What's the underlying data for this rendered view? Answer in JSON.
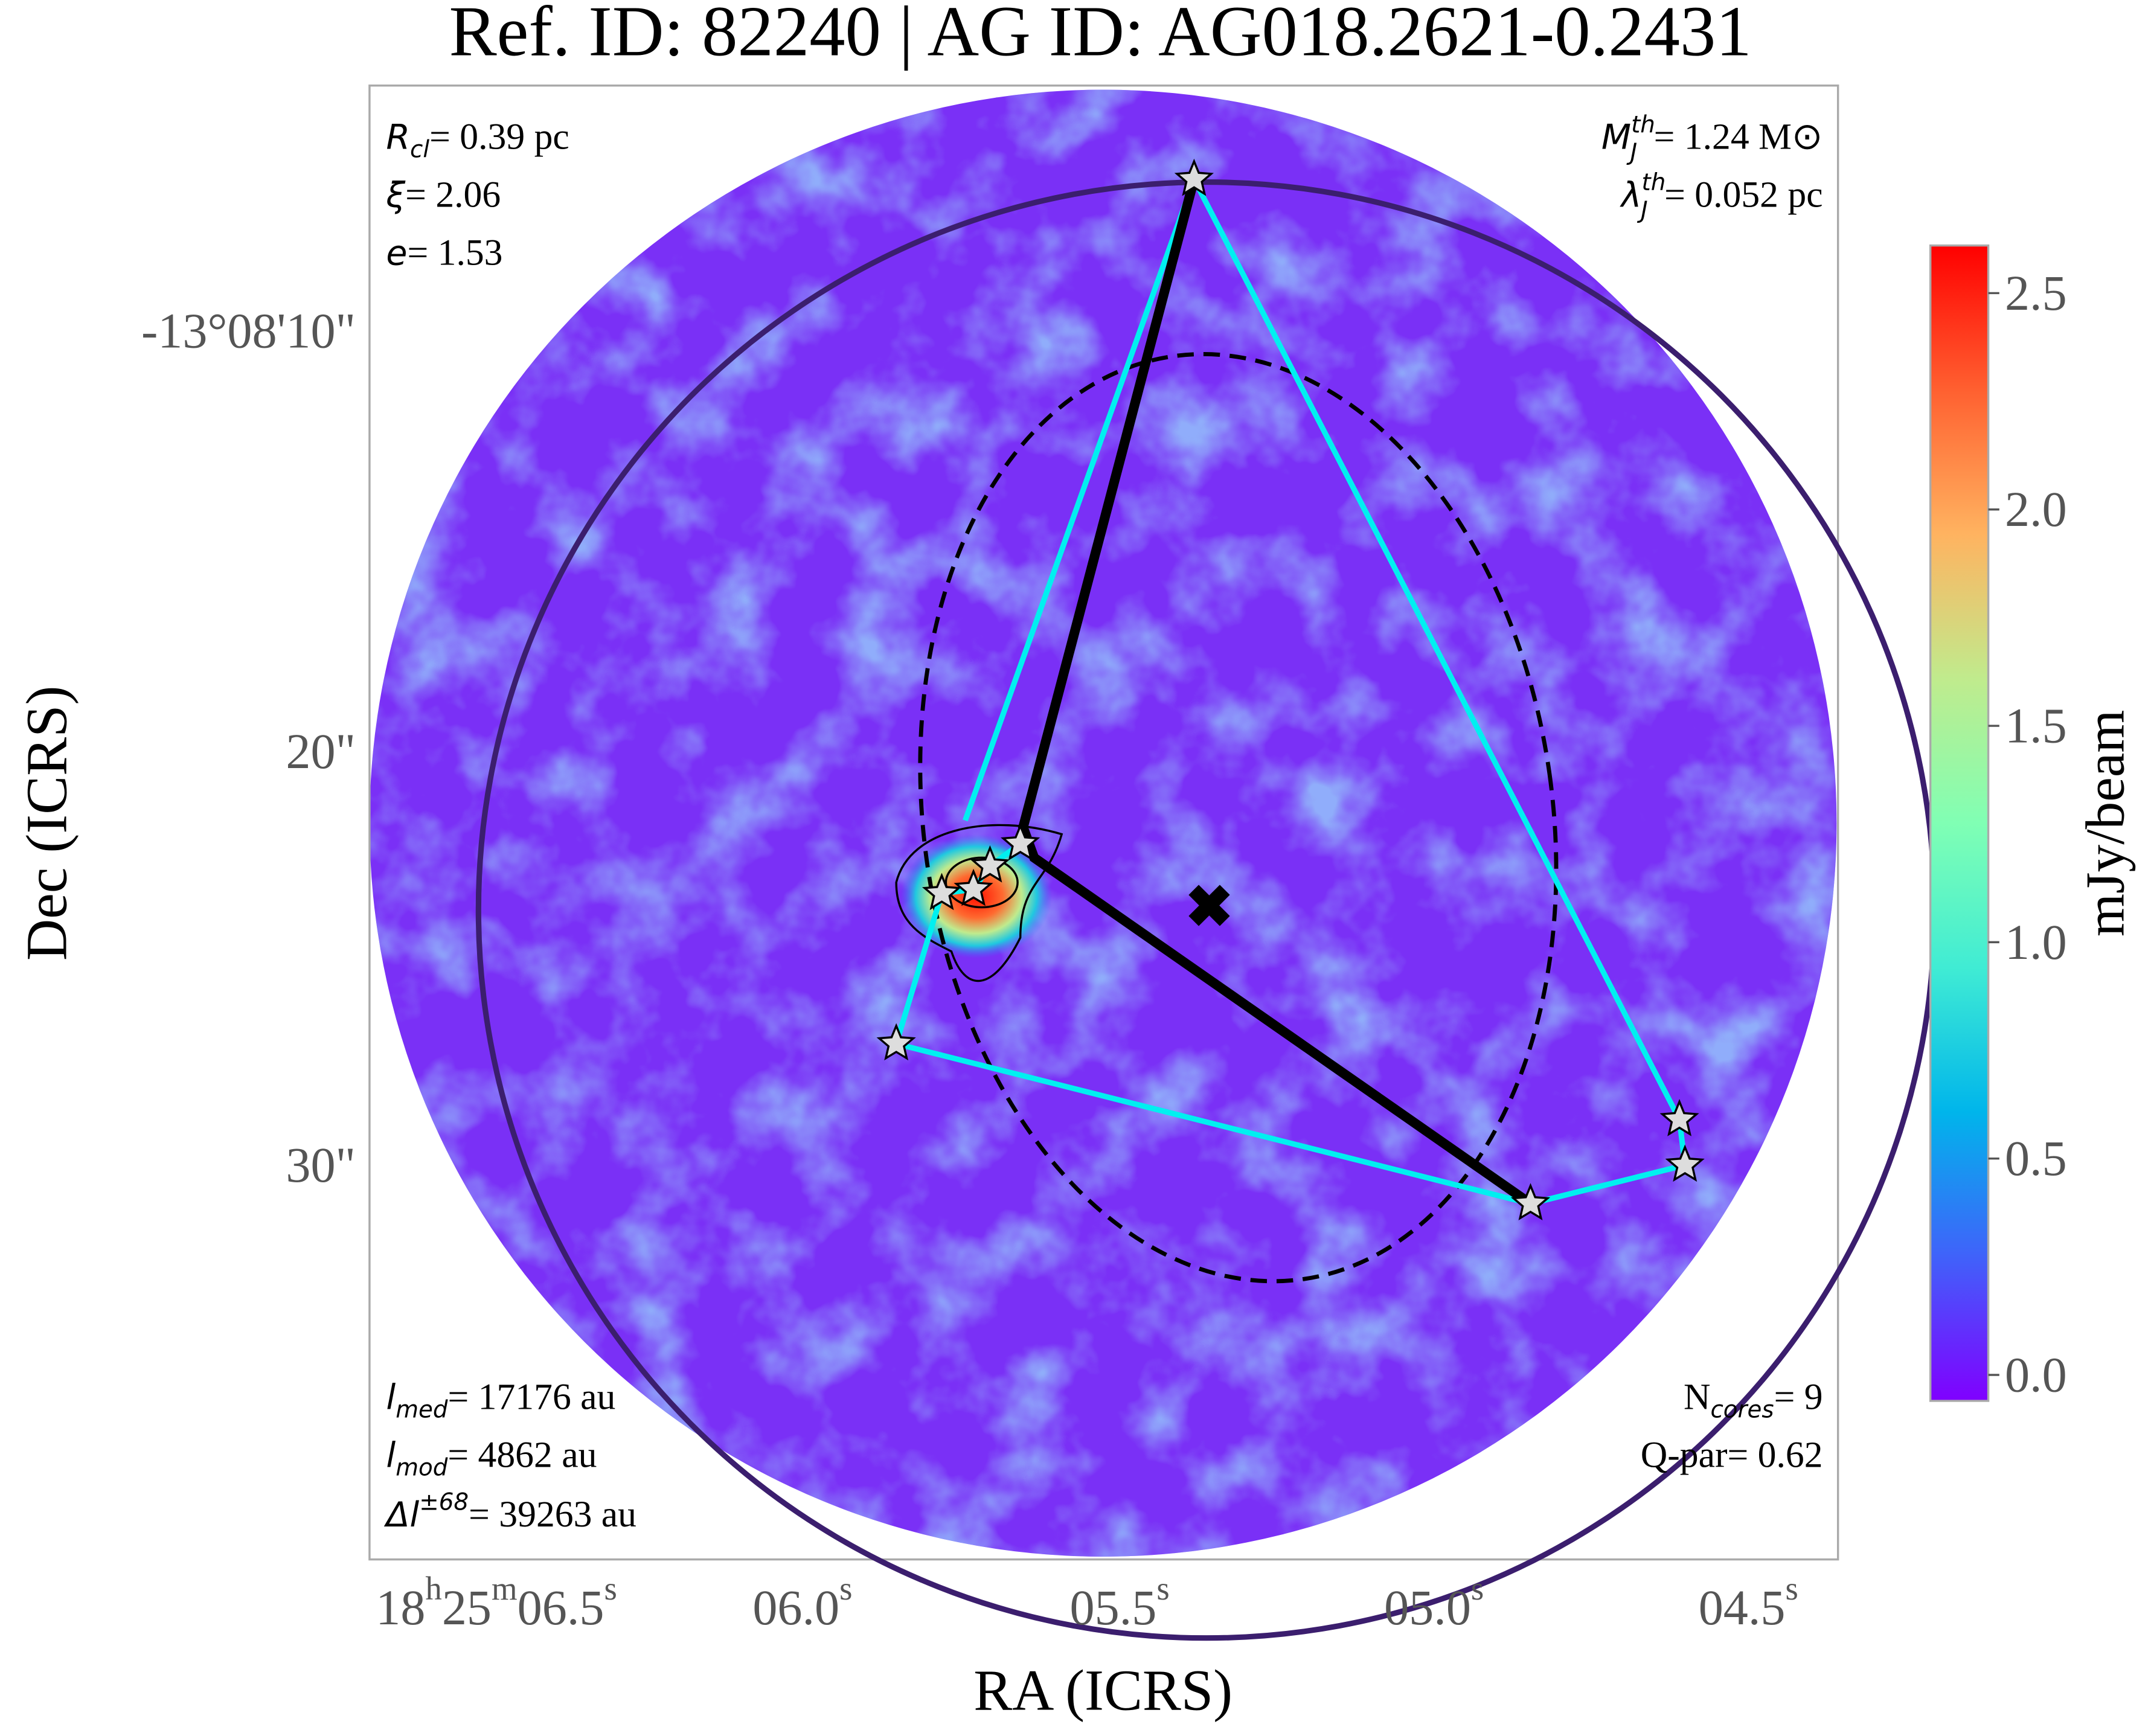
{
  "chart_data": {
    "type": "image",
    "title": "Ref. ID: 82240 | AG ID: AG018.2621-0.2431",
    "xlabel": "RA (ICRS)",
    "ylabel": "Dec (ICRS)",
    "xticks": [
      [
        [
          "18",
          "h"
        ],
        [
          "25",
          "m"
        ],
        [
          "06.5",
          "s"
        ]
      ],
      [
        [
          "06.0",
          "s"
        ]
      ],
      [
        [
          "05.5",
          "s"
        ]
      ],
      [
        [
          "05.0",
          "s"
        ]
      ],
      [
        [
          "04.5",
          "s"
        ]
      ]
    ],
    "yticks": [
      "-13°08'10\"",
      "20\"",
      "30\""
    ],
    "annotations": {
      "r_cl": {
        "sym": "R",
        "sub": "cl",
        "text": "= 0.39 pc"
      },
      "xi": {
        "sym": "ξ",
        "text": "= 2.06"
      },
      "e": {
        "sym": "e",
        "text": "= 1.53"
      },
      "m_j": {
        "sym": "M",
        "sup": "th",
        "sub": "J",
        "text": "= 1.24 M⊙"
      },
      "lambda_j": {
        "sym": "λ",
        "sup": "th",
        "sub": "J",
        "text": "= 0.052 pc"
      },
      "l_med": {
        "sym": "l",
        "sub": "med",
        "text": "= 17176 au"
      },
      "l_mod": {
        "sym": "l",
        "sub": "mod",
        "text": "= 4862 au"
      },
      "delta_l": {
        "sym": "Δl",
        "sup": "±68",
        "text": "= 39263 au"
      },
      "n_cores": {
        "sym": "N",
        "sub": "cores",
        "text": "= 9"
      },
      "q_par": {
        "text": "Q-par= 0.62"
      }
    },
    "colorbar": {
      "label": "mJy/beam",
      "clim": [
        -0.06,
        2.61
      ],
      "ticks": [
        {
          "value": 0,
          "label": "0.0"
        },
        {
          "value": 0.5,
          "label": "0.5"
        },
        {
          "value": 1,
          "label": "1.0"
        },
        {
          "value": 1.5,
          "label": "1.5"
        },
        {
          "value": 2,
          "label": "2.0"
        },
        {
          "value": 2.5,
          "label": "2.5"
        }
      ],
      "colors": [
        "#8000ff",
        "#4062fa",
        "#00b5eb",
        "#40ecd4",
        "#80ffb4",
        "#c0eb8d",
        "#ffb360",
        "#ff6030",
        "#ff0000"
      ]
    }
  }
}
